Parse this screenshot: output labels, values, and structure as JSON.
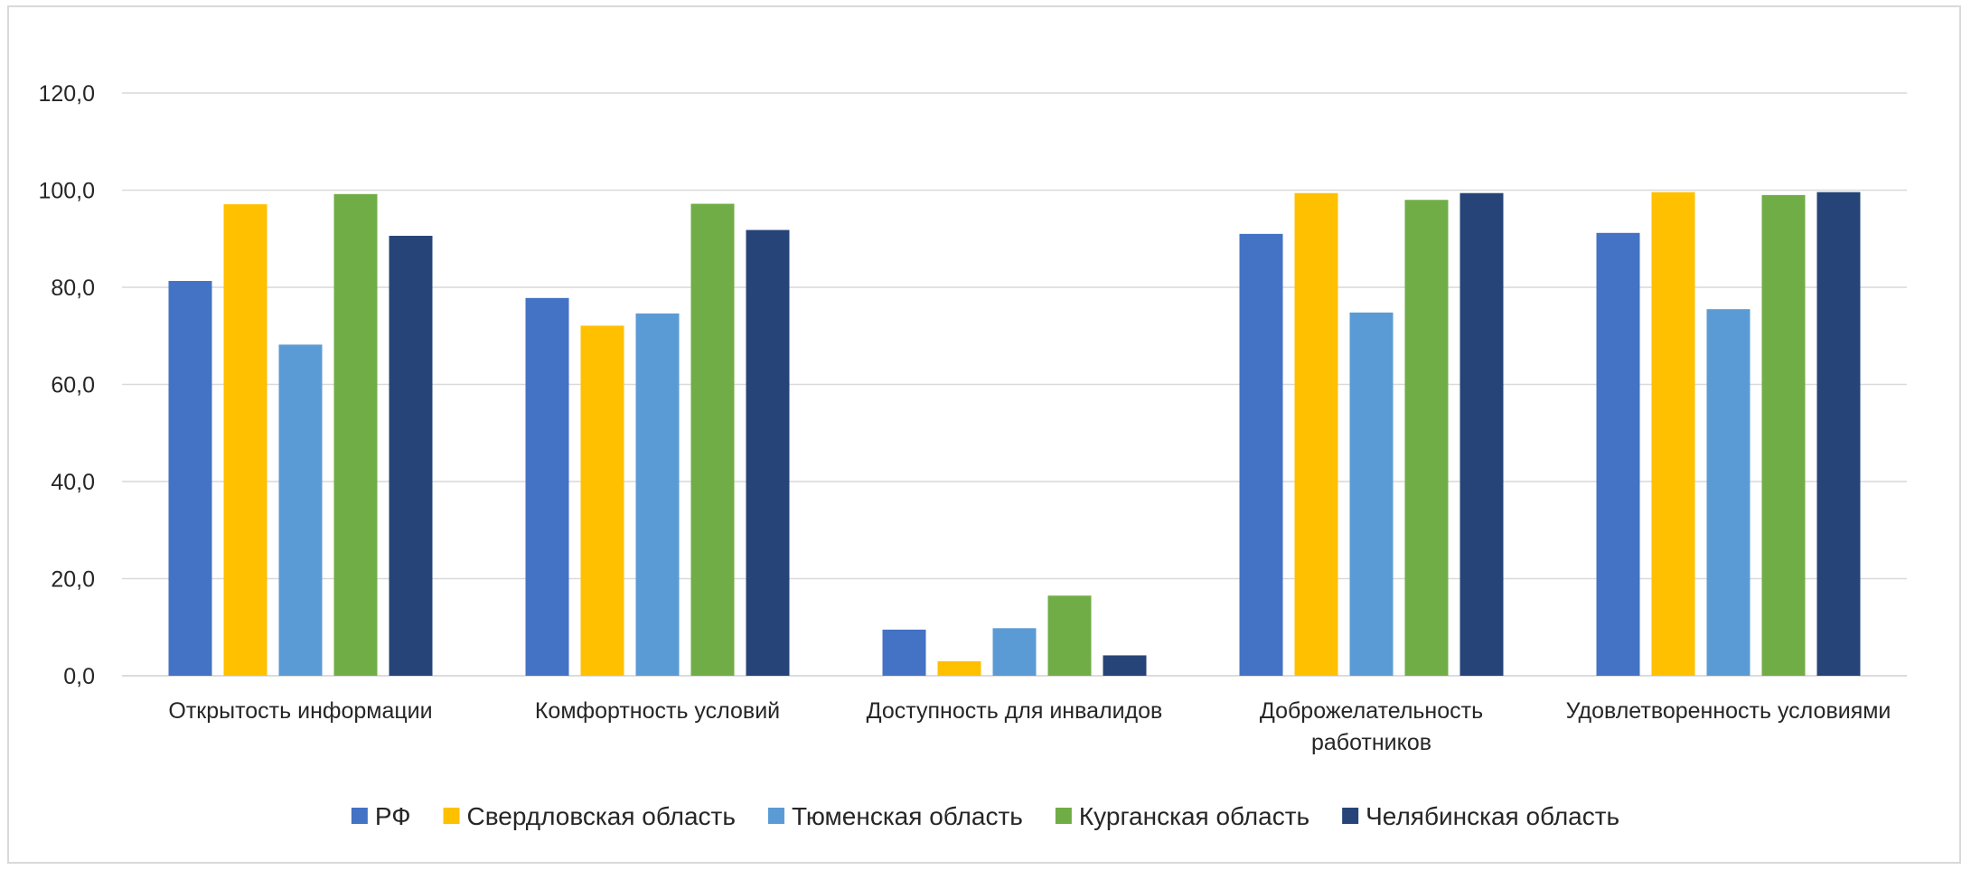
{
  "chart_data": {
    "type": "bar",
    "title": "",
    "xlabel": "",
    "ylabel": "",
    "ylim": [
      0,
      120
    ],
    "yticks": [
      "0,0",
      "20,0",
      "40,0",
      "60,0",
      "80,0",
      "100,0",
      "120,0"
    ],
    "ytick_values": [
      0,
      20,
      40,
      60,
      80,
      100,
      120
    ],
    "grid": true,
    "legend_position": "bottom",
    "categories": [
      [
        "Открытость информации"
      ],
      [
        "Комфортность условий"
      ],
      [
        "Доступность для инвалидов"
      ],
      [
        "Доброжелательность",
        "работников"
      ],
      [
        "Удовлетворенность условиями"
      ]
    ],
    "series": [
      {
        "name": "РФ",
        "color": "#4472C4",
        "values": [
          81.3,
          77.8,
          9.5,
          91.0,
          91.2
        ]
      },
      {
        "name": "Свердловская область",
        "color": "#FFC000",
        "values": [
          97.1,
          72.1,
          3.0,
          99.4,
          99.6
        ]
      },
      {
        "name": "Тюменская область",
        "color": "#5B9BD5",
        "values": [
          68.2,
          74.6,
          9.8,
          74.8,
          75.5
        ]
      },
      {
        "name": "Курганская область",
        "color": "#70AD47",
        "values": [
          99.2,
          97.2,
          16.5,
          98.0,
          99.0
        ]
      },
      {
        "name": "Челябинская область",
        "color": "#264478",
        "values": [
          90.6,
          91.8,
          4.2,
          99.4,
          99.6
        ]
      }
    ]
  }
}
